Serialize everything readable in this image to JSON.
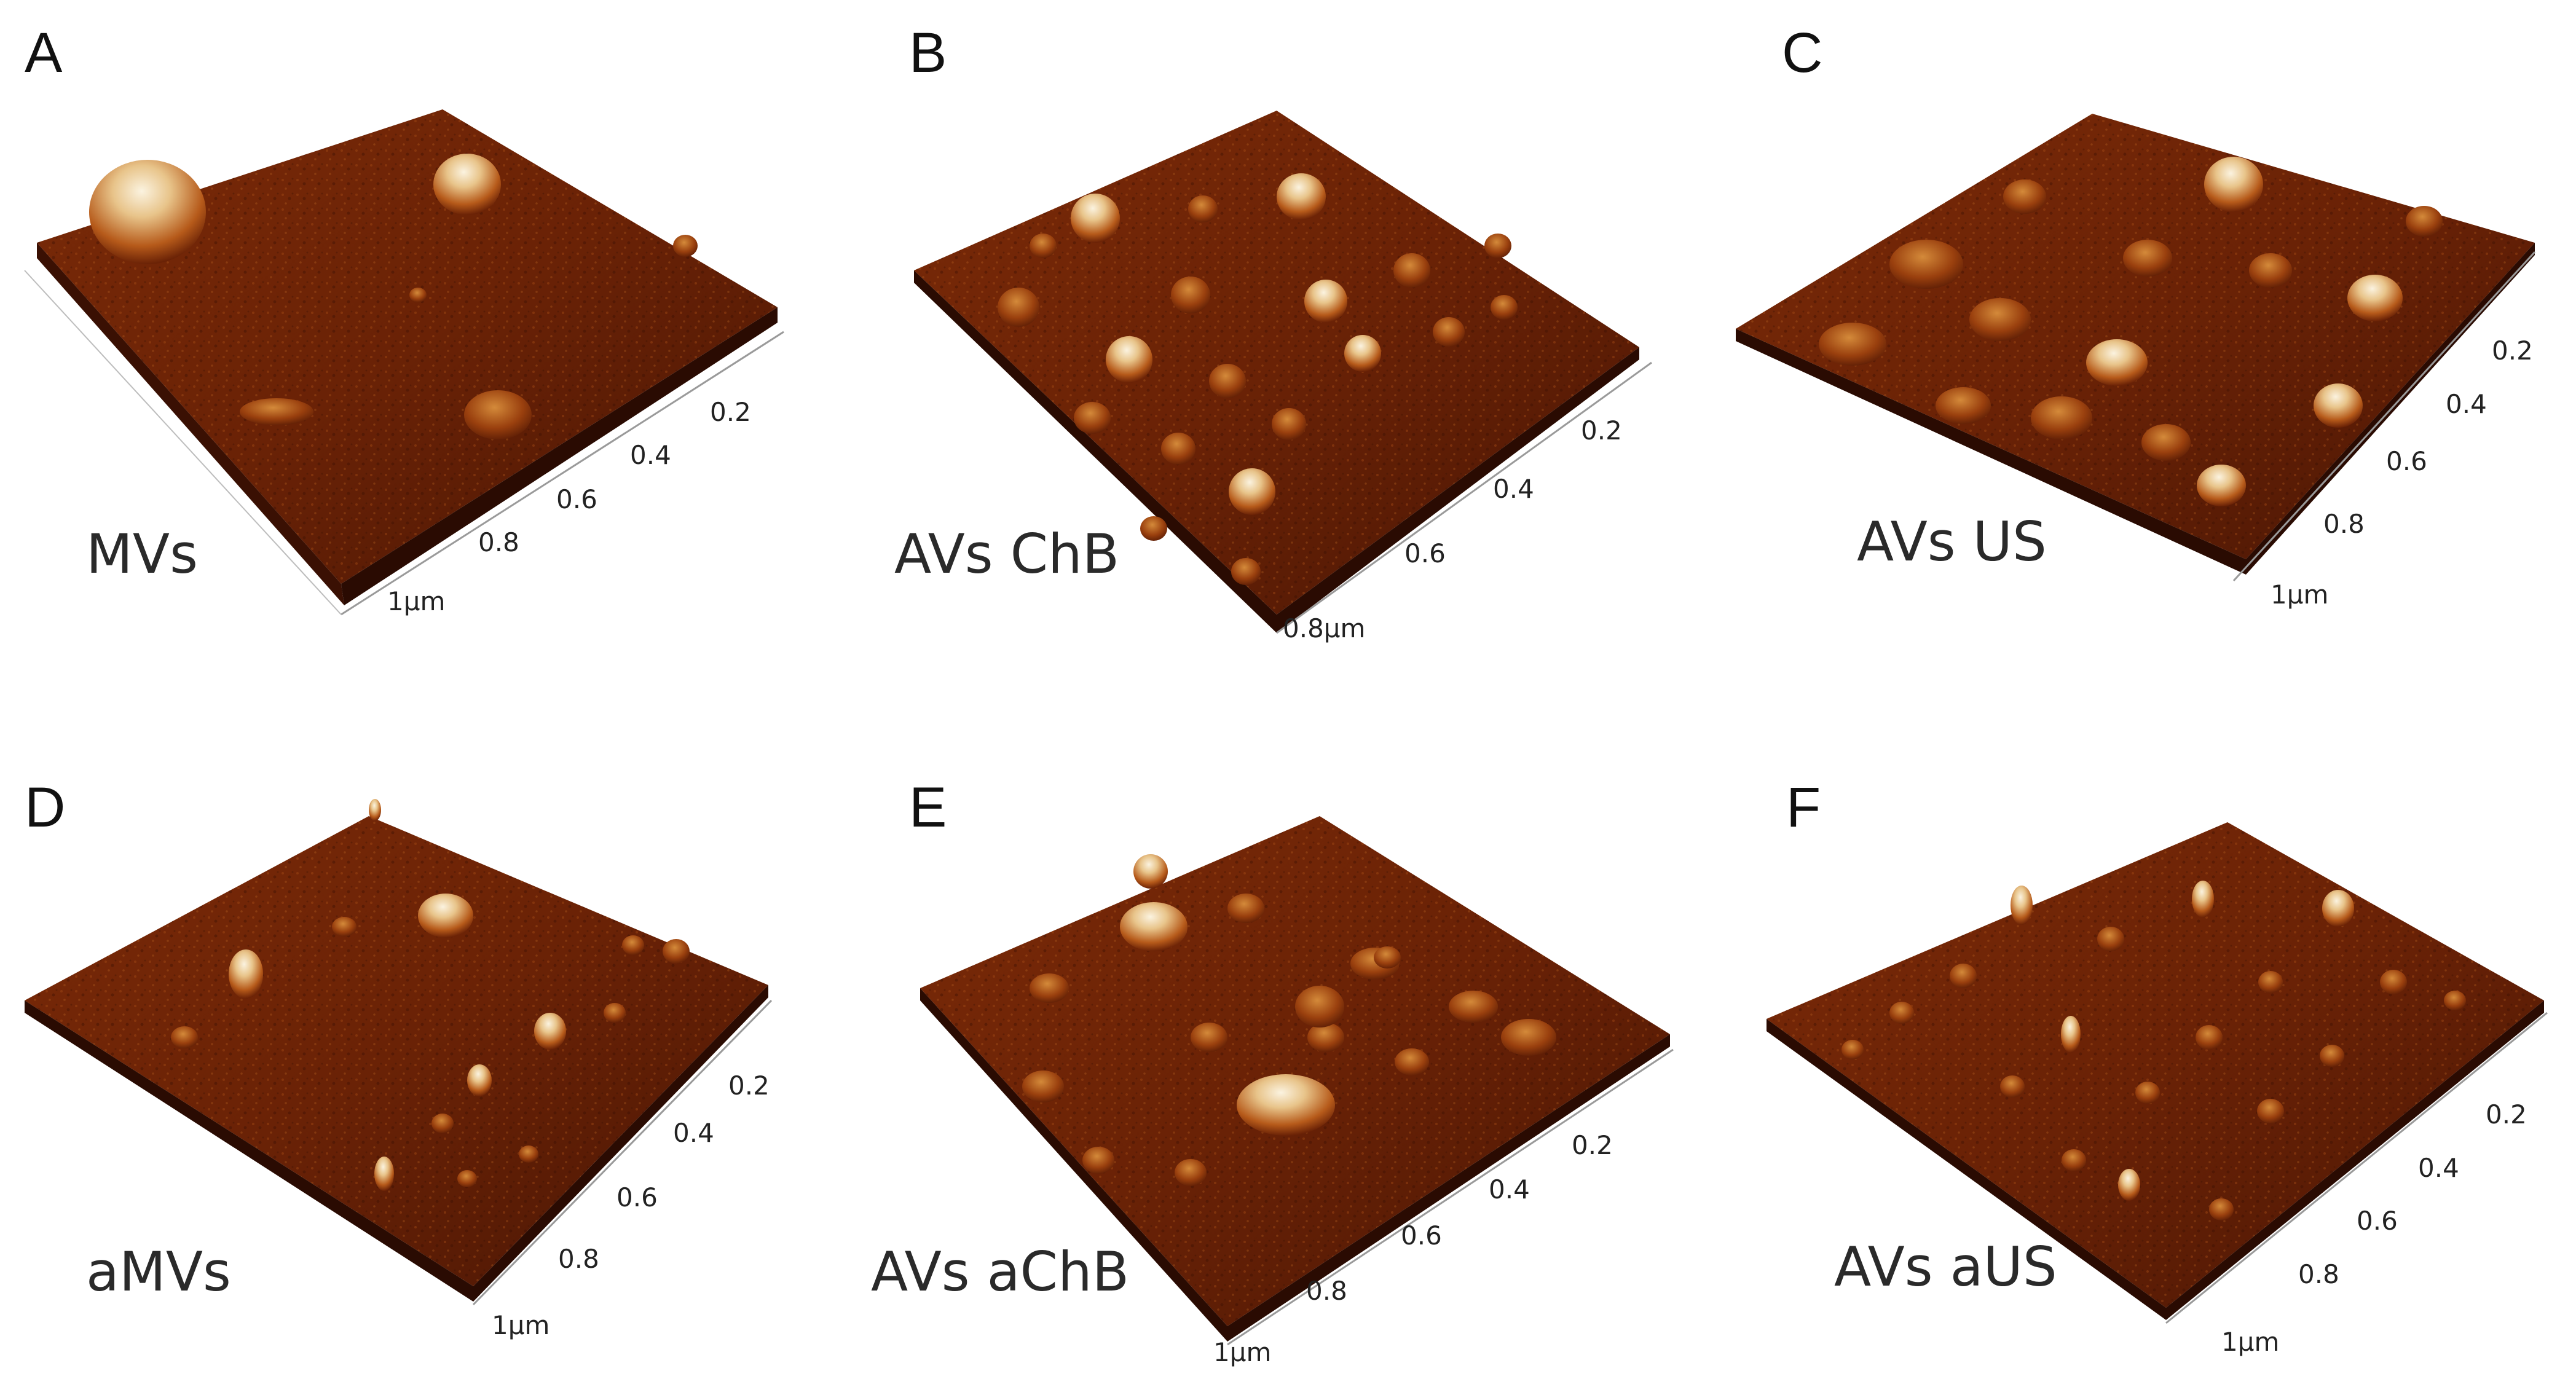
{
  "panels": [
    {
      "letter": "A",
      "caption": "MVs",
      "ticks": [
        "0.2",
        "0.4",
        "0.6",
        "0.8",
        "1μm"
      ]
    },
    {
      "letter": "B",
      "caption": "AVs ChB",
      "ticks": [
        "0.2",
        "0.4",
        "0.6",
        "0.8μm"
      ]
    },
    {
      "letter": "C",
      "caption": "AVs US",
      "ticks": [
        "0.2",
        "0.4",
        "0.6",
        "0.8",
        "1μm"
      ]
    },
    {
      "letter": "D",
      "caption": "aMVs",
      "ticks": [
        "0.2",
        "0.4",
        "0.6",
        "0.8",
        "1μm"
      ]
    },
    {
      "letter": "E",
      "caption": "AVs aChB",
      "ticks": [
        "0.2",
        "0.4",
        "0.6",
        "0.8",
        "1μm"
      ]
    },
    {
      "letter": "F",
      "caption": "AVs aUS",
      "ticks": [
        "0.2",
        "0.4",
        "0.6",
        "0.8",
        "1μm"
      ]
    }
  ],
  "colors": {
    "surface_dark": "#4a1604",
    "surface_mid": "#8c3209",
    "surface_light": "#c0651c",
    "peak": "#f4e6c8",
    "axis": "#9a9a9a"
  }
}
